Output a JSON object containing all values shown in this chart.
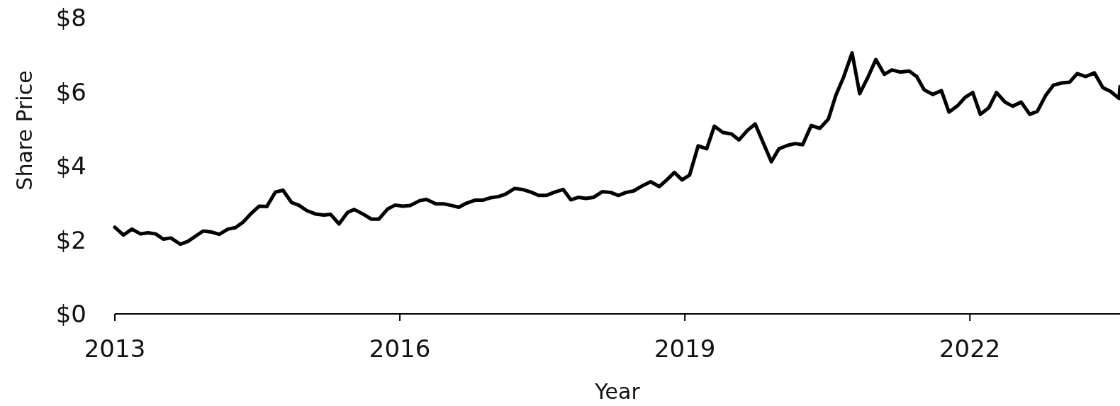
{
  "chart_data": {
    "type": "line",
    "xlabel": "Year",
    "ylabel": "Share Price",
    "x": [
      2013.0,
      2013.09,
      2013.18,
      2013.27,
      2013.35,
      2013.43,
      2013.51,
      2013.59,
      2013.69,
      2013.77,
      2013.85,
      2013.93,
      2014.02,
      2014.1,
      2014.19,
      2014.27,
      2014.35,
      2014.43,
      2014.52,
      2014.6,
      2014.69,
      2014.77,
      2014.86,
      2014.94,
      2015.02,
      2015.11,
      2015.2,
      2015.27,
      2015.36,
      2015.45,
      2015.52,
      2015.61,
      2015.7,
      2015.78,
      2015.87,
      2015.95,
      2016.03,
      2016.11,
      2016.21,
      2016.28,
      2016.38,
      2016.47,
      2016.54,
      2016.62,
      2016.7,
      2016.79,
      2016.87,
      2016.96,
      2017.04,
      2017.11,
      2017.21,
      2017.29,
      2017.38,
      2017.46,
      2017.54,
      2017.63,
      2017.72,
      2017.8,
      2017.88,
      2017.96,
      2018.04,
      2018.13,
      2018.22,
      2018.3,
      2018.38,
      2018.46,
      2018.56,
      2018.64,
      2018.73,
      2018.81,
      2018.89,
      2018.97,
      2019.05,
      2019.14,
      2019.23,
      2019.31,
      2019.4,
      2019.49,
      2019.57,
      2019.66,
      2019.74,
      2019.82,
      2019.91,
      2019.99,
      2020.08,
      2020.16,
      2020.24,
      2020.33,
      2020.42,
      2020.51,
      2020.59,
      2020.67,
      2020.76,
      2020.84,
      2020.93,
      2021.01,
      2021.1,
      2021.18,
      2021.27,
      2021.36,
      2021.44,
      2021.52,
      2021.61,
      2021.7,
      2021.78,
      2021.87,
      2021.95,
      2022.03,
      2022.11,
      2022.2,
      2022.28,
      2022.37,
      2022.45,
      2022.54,
      2022.63,
      2022.71,
      2022.8,
      2022.88,
      2022.97,
      2023.05,
      2023.13,
      2023.22,
      2023.31,
      2023.4,
      2023.48,
      2023.57,
      2023.58
    ],
    "series": [
      {
        "color": "#000000",
        "values": [
          2.34,
          2.13,
          2.29,
          2.16,
          2.19,
          2.16,
          2.02,
          2.05,
          1.88,
          1.96,
          2.1,
          2.24,
          2.21,
          2.15,
          2.29,
          2.33,
          2.48,
          2.7,
          2.91,
          2.9,
          3.29,
          3.34,
          3.01,
          2.93,
          2.79,
          2.7,
          2.67,
          2.69,
          2.43,
          2.74,
          2.82,
          2.7,
          2.56,
          2.56,
          2.83,
          2.94,
          2.91,
          2.93,
          3.06,
          3.09,
          2.97,
          2.97,
          2.93,
          2.88,
          2.99,
          3.07,
          3.07,
          3.14,
          3.17,
          3.23,
          3.39,
          3.36,
          3.29,
          3.2,
          3.2,
          3.29,
          3.36,
          3.08,
          3.15,
          3.12,
          3.15,
          3.3,
          3.28,
          3.2,
          3.28,
          3.32,
          3.47,
          3.57,
          3.44,
          3.62,
          3.82,
          3.62,
          3.75,
          4.54,
          4.46,
          5.07,
          4.9,
          4.86,
          4.7,
          4.96,
          5.13,
          4.65,
          4.11,
          4.46,
          4.55,
          4.6,
          4.57,
          5.09,
          5.01,
          5.26,
          5.91,
          6.39,
          7.05,
          5.95,
          6.41,
          6.87,
          6.47,
          6.59,
          6.53,
          6.56,
          6.41,
          6.05,
          5.93,
          6.03,
          5.45,
          5.62,
          5.85,
          5.98,
          5.39,
          5.57,
          5.98,
          5.72,
          5.61,
          5.72,
          5.39,
          5.47,
          5.91,
          6.18,
          6.24,
          6.26,
          6.49,
          6.41,
          6.51,
          6.11,
          6.01,
          5.82,
          6.14
        ]
      }
    ],
    "xlim": [
      2013,
      2023.58
    ],
    "xticks": [
      2013,
      2016,
      2019,
      2022
    ],
    "ylim": [
      0,
      8
    ],
    "yticks": [
      {
        "value": 0,
        "label": "$0"
      },
      {
        "value": 2,
        "label": "$2"
      },
      {
        "value": 4,
        "label": "$4"
      },
      {
        "value": 6,
        "label": "$6"
      },
      {
        "value": 8,
        "label": "$8"
      }
    ],
    "grid": false,
    "marker": "none",
    "line_style": "solid"
  }
}
